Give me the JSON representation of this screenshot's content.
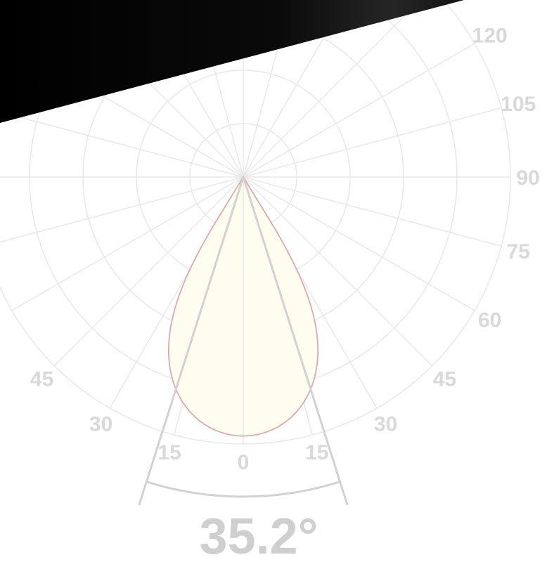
{
  "chart_data": {
    "type": "polar",
    "orientation": "downward",
    "angle_ticks": [
      {
        "label": "0",
        "angle": 0
      },
      {
        "label": "15",
        "angle": -15
      },
      {
        "label": "15",
        "angle": 15
      },
      {
        "label": "30",
        "angle": -30
      },
      {
        "label": "30",
        "angle": 30
      },
      {
        "label": "45",
        "angle": -45
      },
      {
        "label": "45",
        "angle": 45
      },
      {
        "label": "60",
        "angle": 60
      },
      {
        "label": "75",
        "angle": 75
      },
      {
        "label": "90",
        "angle": 90
      },
      {
        "label": "105",
        "angle": 105
      },
      {
        "label": "120",
        "angle": 120
      }
    ],
    "spoke_step_deg": 15,
    "ring_count": 5,
    "beam_angle_deg": 35.2,
    "beam_angle_label": "35.2°",
    "distribution": {
      "half_width_deg": 32,
      "peak_relative": 0.97
    },
    "grid": true,
    "colors": {
      "grid": "#e8e8e8",
      "label": "#d9d9d9",
      "beam_lines": "#d2d2d2",
      "lobe_stroke": "#dba9ae",
      "lobe_fill": "#fffcf0",
      "header_band": "#050505"
    }
  }
}
